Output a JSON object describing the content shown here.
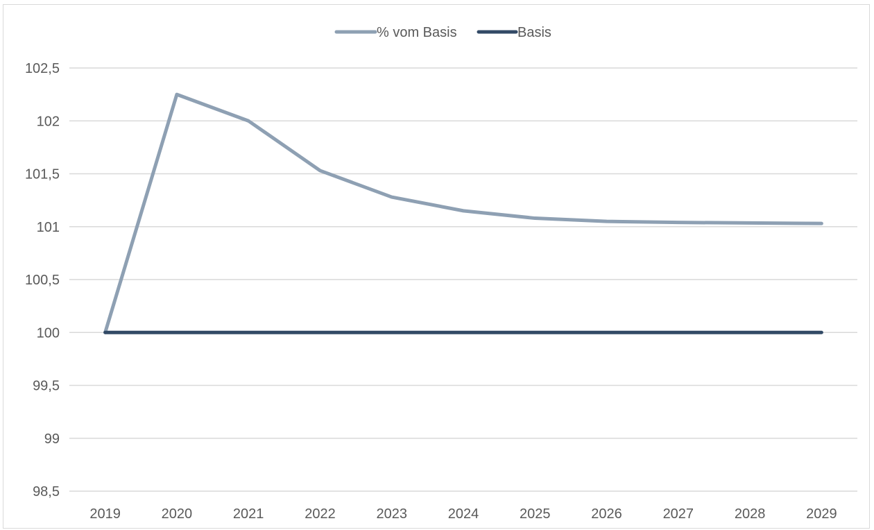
{
  "chart_data": {
    "type": "line",
    "title": "",
    "xlabel": "",
    "ylabel": "",
    "x": [
      "2019",
      "2020",
      "2021",
      "2022",
      "2023",
      "2024",
      "2025",
      "2026",
      "2027",
      "2028",
      "2029"
    ],
    "y_ticks": [
      "98,5",
      "99",
      "99,5",
      "100",
      "100,5",
      "101",
      "101,5",
      "102",
      "102,5"
    ],
    "ylim": [
      98.5,
      102.5
    ],
    "grid": true,
    "legend_position": "top",
    "series": [
      {
        "name": "% vom Basis",
        "color": "#8ea0b3",
        "values": [
          100,
          102.25,
          102.0,
          101.53,
          101.28,
          101.15,
          101.08,
          101.05,
          101.04,
          101.035,
          101.03
        ]
      },
      {
        "name": "Basis",
        "color": "#324a66",
        "values": [
          100,
          100,
          100,
          100,
          100,
          100,
          100,
          100,
          100,
          100,
          100
        ]
      }
    ]
  }
}
